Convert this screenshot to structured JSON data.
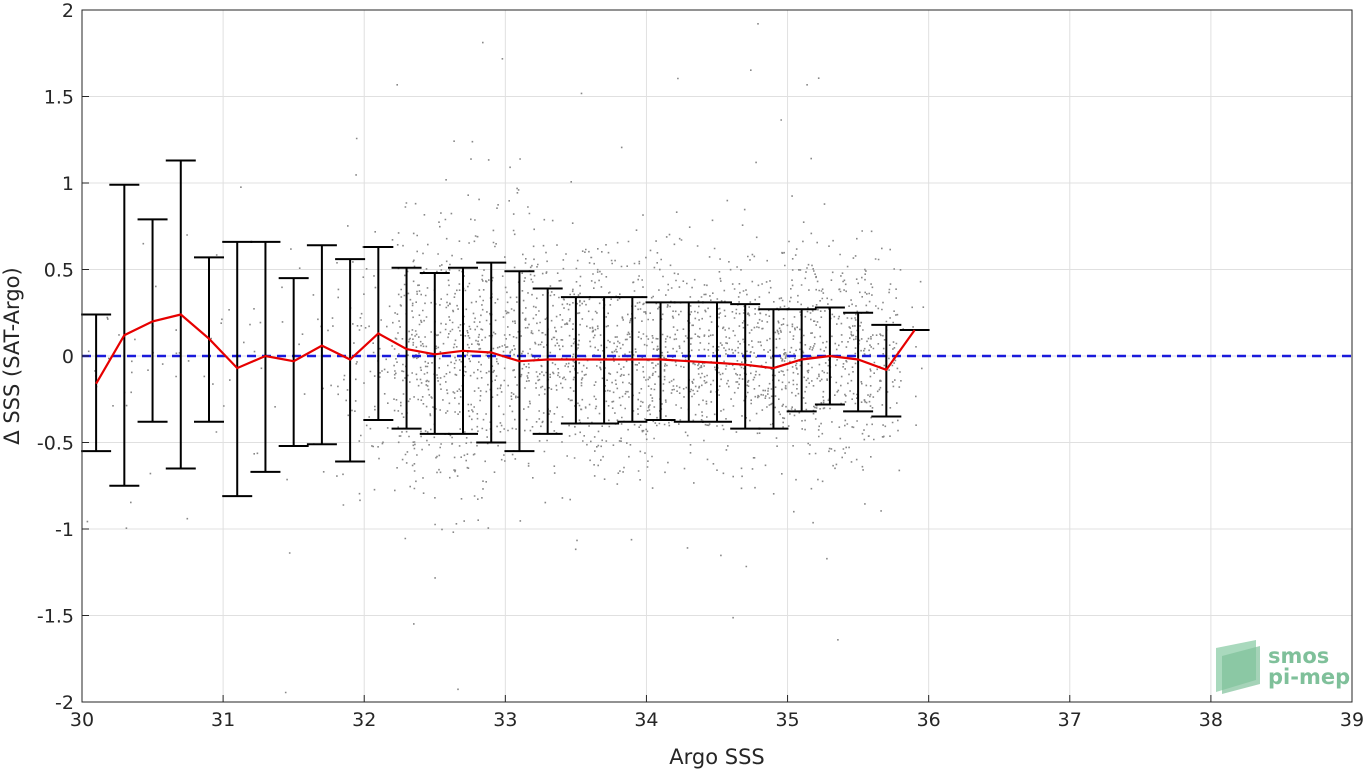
{
  "chart_data": {
    "type": "scatter",
    "title": "",
    "xlabel": "Argo SSS",
    "ylabel": "Δ SSS (SAT-Argo)",
    "xlim": [
      30,
      39
    ],
    "ylim": [
      -2,
      2
    ],
    "x_ticks": [
      "30",
      "31",
      "32",
      "33",
      "34",
      "35",
      "36",
      "37",
      "38",
      "39"
    ],
    "y_ticks": [
      "-2",
      "-1.5",
      "-1",
      "-0.5",
      "0",
      "0.5",
      "1",
      "1.5",
      "2"
    ],
    "grid": true,
    "legend": "none",
    "colors": {
      "scatter": "#888888",
      "mean_line": "#e60000",
      "errorbar": "#000000",
      "zero_line": "#1a1adb",
      "grid": "#e0e0e0",
      "logo": "#7fc09a"
    },
    "binned_stats": {
      "x": [
        30.1,
        30.3,
        30.5,
        30.7,
        30.9,
        31.1,
        31.3,
        31.5,
        31.7,
        31.9,
        32.1,
        32.3,
        32.5,
        32.7,
        32.9,
        33.1,
        33.3,
        33.5,
        33.7,
        33.9,
        34.1,
        34.3,
        34.5,
        34.7,
        34.9,
        35.1,
        35.3,
        35.5,
        35.7,
        35.9
      ],
      "mean": [
        -0.16,
        0.12,
        0.2,
        0.24,
        0.1,
        -0.07,
        0.0,
        -0.03,
        0.06,
        -0.02,
        0.13,
        0.04,
        0.01,
        0.03,
        0.02,
        -0.03,
        -0.02,
        -0.02,
        -0.02,
        -0.02,
        -0.02,
        -0.03,
        -0.04,
        -0.05,
        -0.07,
        -0.02,
        0.0,
        -0.02,
        -0.08,
        0.15
      ],
      "upper": [
        0.24,
        0.99,
        0.79,
        1.13,
        0.57,
        0.66,
        0.66,
        0.45,
        0.64,
        0.56,
        0.63,
        0.51,
        0.48,
        0.51,
        0.54,
        0.49,
        0.39,
        0.34,
        0.34,
        0.34,
        0.31,
        0.31,
        0.31,
        0.3,
        0.27,
        0.27,
        0.28,
        0.25,
        0.18,
        null
      ],
      "lower": [
        -0.55,
        -0.75,
        -0.38,
        -0.65,
        -0.38,
        -0.81,
        -0.67,
        -0.52,
        -0.51,
        -0.61,
        -0.37,
        -0.42,
        -0.45,
        -0.45,
        -0.5,
        -0.55,
        -0.45,
        -0.39,
        -0.39,
        -0.38,
        -0.37,
        -0.38,
        -0.38,
        -0.42,
        -0.42,
        -0.32,
        -0.28,
        -0.32,
        -0.35,
        null
      ]
    },
    "zero_line": 0
  },
  "logo": {
    "line1": "smos",
    "line2": "pi-mep"
  }
}
